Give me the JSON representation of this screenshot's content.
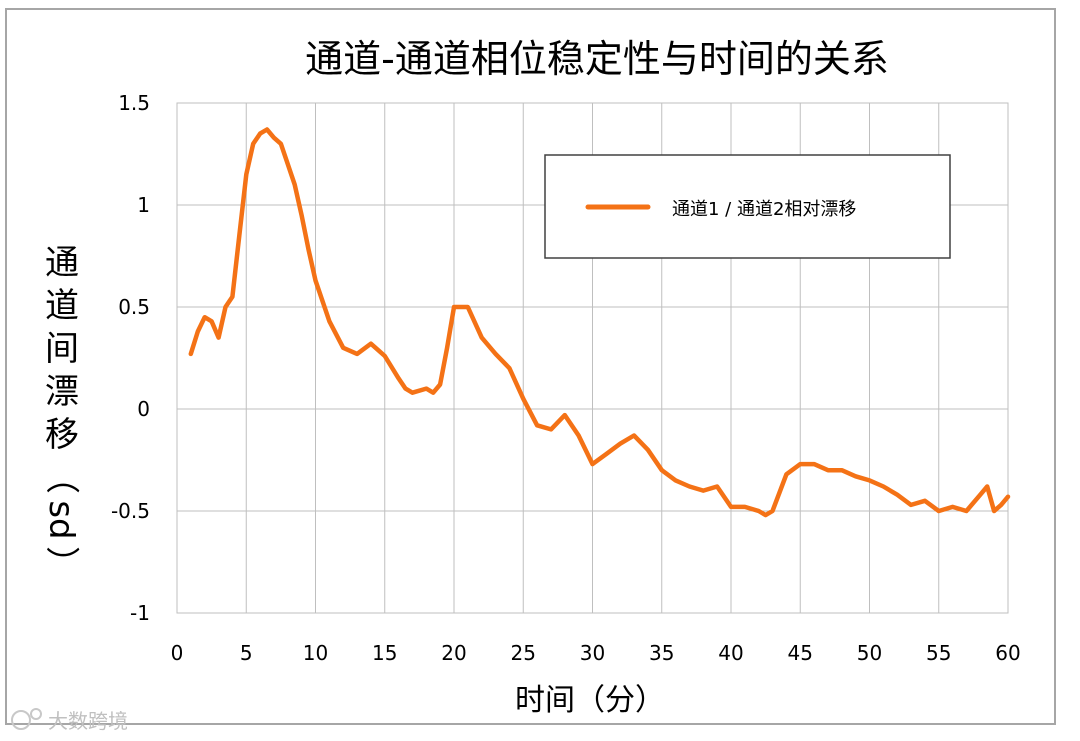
{
  "chart_data": {
    "type": "line",
    "title": "通道-通道相位稳定性与时间的关系",
    "xlabel": "时间（分）",
    "ylabel_chars": [
      "通",
      "道",
      "间",
      "漂",
      "移",
      "（",
      "sd",
      "）"
    ],
    "xlim": [
      0,
      60
    ],
    "ylim": [
      -1,
      1.5
    ],
    "x_ticks": [
      "0",
      "5",
      "10",
      "15",
      "20",
      "25",
      "30",
      "35",
      "40",
      "45",
      "50",
      "55",
      "60"
    ],
    "y_ticks": [
      "1.5",
      "1",
      "0.5",
      "0",
      "-0.5",
      "-1"
    ],
    "grid": true,
    "legend_position": "top-right",
    "series": [
      {
        "name": "通道1 / 通道2相对漂移",
        "color": "#f47216",
        "x": [
          1,
          1.5,
          2,
          2.5,
          3,
          3.5,
          4,
          4.5,
          5,
          5.5,
          6,
          6.5,
          7,
          7.5,
          8,
          8.5,
          9,
          9.5,
          10,
          11,
          12,
          13,
          14,
          15,
          16,
          16.5,
          17,
          18,
          18.5,
          19,
          19.5,
          20,
          21,
          22,
          23,
          24,
          25,
          26,
          27,
          28,
          29,
          30,
          31,
          32,
          33,
          34,
          35,
          36,
          37,
          38,
          39,
          40,
          41,
          42,
          42.5,
          43,
          44,
          45,
          46,
          47,
          48,
          49,
          50,
          51,
          52,
          53,
          54,
          55,
          56,
          57,
          58,
          58.5,
          59,
          59.5,
          60
        ],
        "values": [
          0.27,
          0.38,
          0.45,
          0.43,
          0.35,
          0.5,
          0.55,
          0.85,
          1.15,
          1.3,
          1.35,
          1.37,
          1.33,
          1.3,
          1.2,
          1.1,
          0.95,
          0.78,
          0.63,
          0.43,
          0.3,
          0.27,
          0.32,
          0.26,
          0.15,
          0.1,
          0.08,
          0.1,
          0.08,
          0.12,
          0.3,
          0.5,
          0.5,
          0.35,
          0.27,
          0.2,
          0.05,
          -0.08,
          -0.1,
          -0.03,
          -0.13,
          -0.27,
          -0.22,
          -0.17,
          -0.13,
          -0.2,
          -0.3,
          -0.35,
          -0.38,
          -0.4,
          -0.38,
          -0.48,
          -0.48,
          -0.5,
          -0.52,
          -0.5,
          -0.32,
          -0.27,
          -0.27,
          -0.3,
          -0.3,
          -0.33,
          -0.35,
          -0.38,
          -0.42,
          -0.47,
          -0.45,
          -0.5,
          -0.48,
          -0.5,
          -0.42,
          -0.38,
          -0.5,
          -0.47,
          -0.43
        ]
      }
    ]
  },
  "watermark": "大数跨境"
}
